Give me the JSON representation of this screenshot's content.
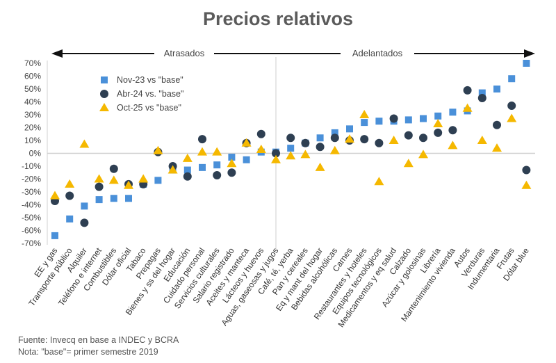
{
  "title": "Precios relativos",
  "arrows": {
    "left": "Atrasados",
    "right": "Adelantados"
  },
  "footer": {
    "source": "Fuente: Invecq en base a INDEC y BCRA",
    "note": "Nota: \"base\"= primer semestre 2019"
  },
  "chart_data": {
    "type": "scatter",
    "title": "Precios relativos",
    "ylim": [
      -70,
      70
    ],
    "y_ticks": [
      "70%",
      "60%",
      "50%",
      "40%",
      "30%",
      "20%",
      "10%",
      "0%",
      "-10%",
      "-20%",
      "-30%",
      "-40%",
      "-50%",
      "-60%",
      "-70%"
    ],
    "legend_position": "top-left",
    "categories": [
      "EE y gas",
      "Transporte público",
      "Alquiler",
      "Teléfono e internet",
      "Combustibles",
      "Dólar oficial",
      "Tabaco",
      "Prepagas",
      "Bienes y ss del hogar",
      "Educación",
      "Cuidado personal",
      "Servicios culturales",
      "Salario registrado",
      "Aceites y manteca",
      "Lácteos y huevos",
      "Aguas, gaseosas y jugos",
      "Café, té, yerba",
      "Pan y cereales",
      "Eq y mant del hogar",
      "Bebidas alcohólicas",
      "Carnes",
      "Restaurantes y hoteles",
      "Equipos tecnológicos",
      "Medicamentos y eq salud",
      "Calzado",
      "Azúcar y golosinas",
      "Librería",
      "Mantenimiento vivienda",
      "Autos",
      "Verduras",
      "Indumentaria",
      "Frutas",
      "Dólar blue"
    ],
    "series": [
      {
        "name": "Nov-23 vs \"base\"",
        "marker": "square",
        "color": "#4a90d9",
        "values": [
          -64,
          -51,
          -41,
          -36,
          -35,
          -35,
          -24,
          -21,
          -13,
          -13,
          -11,
          -9,
          -3,
          -5,
          1,
          1,
          4,
          8,
          12,
          16,
          19,
          24,
          25,
          25,
          26,
          27,
          29,
          32,
          33,
          47,
          50,
          58,
          70
        ]
      },
      {
        "name": "Abr-24 vs. \"base\"",
        "marker": "circle",
        "color": "#2e3f52",
        "values": [
          -37,
          -33,
          -54,
          -26,
          -12,
          -24,
          -24,
          1,
          -10,
          -18,
          11,
          -17,
          -15,
          8,
          15,
          0,
          12,
          8,
          5,
          12,
          10,
          11,
          8,
          27,
          14,
          12,
          16,
          18,
          49,
          43,
          22,
          37,
          -13
        ]
      },
      {
        "name": "Oct-25 vs \"base\"",
        "marker": "triangle",
        "color": "#f5b800",
        "values": [
          -33,
          -24,
          7,
          -20,
          -21,
          -25,
          -20,
          2,
          -13,
          -4,
          1,
          1,
          -8,
          8,
          3,
          -5,
          -2,
          -1,
          -11,
          2,
          11,
          30,
          -22,
          10,
          -8,
          -1,
          23,
          6,
          35,
          10,
          4,
          27,
          -25
        ]
      }
    ]
  }
}
